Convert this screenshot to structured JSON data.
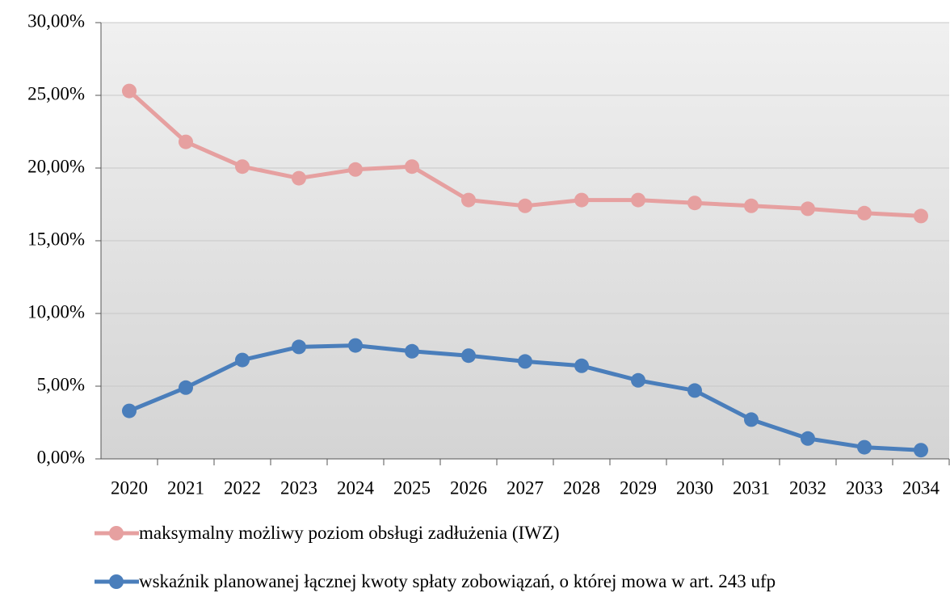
{
  "chart_data": {
    "type": "line",
    "categories": [
      "2020",
      "2021",
      "2022",
      "2023",
      "2024",
      "2025",
      "2026",
      "2027",
      "2028",
      "2029",
      "2030",
      "2031",
      "2032",
      "2033",
      "2034"
    ],
    "series": [
      {
        "name": "maksymalny możliwy poziom obsługi zadłużenia (IWZ)",
        "color": "#e6a0a0",
        "values": [
          25.3,
          21.8,
          20.1,
          19.3,
          19.9,
          20.1,
          17.8,
          17.4,
          17.8,
          17.8,
          17.6,
          17.4,
          17.2,
          16.9,
          16.7
        ]
      },
      {
        "name": "wskaźnik planowanej łącznej kwoty spłaty zobowiązań, o której mowa w art. 243 ufp",
        "color": "#4a7ebb",
        "values": [
          3.3,
          4.9,
          6.8,
          7.7,
          7.8,
          7.4,
          7.1,
          6.7,
          6.4,
          5.4,
          4.7,
          2.7,
          1.4,
          0.8,
          0.6
        ]
      }
    ],
    "ylim": [
      0,
      30
    ],
    "yticks": [
      {
        "value": 0,
        "label": "0,00%"
      },
      {
        "value": 5,
        "label": "5,00%"
      },
      {
        "value": 10,
        "label": "10,00%"
      },
      {
        "value": 15,
        "label": "15,00%"
      },
      {
        "value": 20,
        "label": "20,00%"
      },
      {
        "value": 25,
        "label": "25,00%"
      },
      {
        "value": 30,
        "label": "30,00%"
      }
    ],
    "grid": true
  }
}
